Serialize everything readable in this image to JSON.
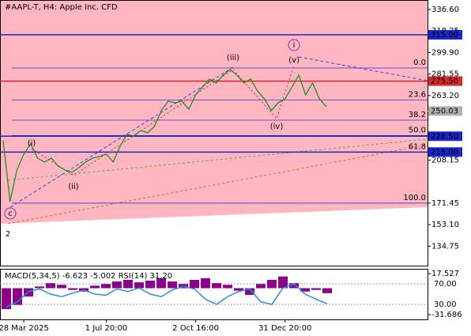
{
  "chart_data": [
    {
      "type": "line",
      "title": "#AAPL-T, H4:  Apple Inc. CFD",
      "categories": [
        null,
        null,
        null,
        "28 Mar 2025",
        null,
        null,
        null,
        null,
        null,
        null,
        null,
        null,
        null,
        null,
        null,
        "1 Jul 20:00",
        null,
        null,
        null,
        null,
        null,
        null,
        null,
        null,
        null,
        null,
        null,
        null,
        "2 Oct 16:00",
        null,
        null,
        null,
        null,
        null,
        null,
        null,
        null,
        null,
        null,
        null,
        null,
        "31 Dec 20:00",
        null,
        null,
        null,
        null,
        null,
        null
      ],
      "series": [
        {
          "color": "#1f8f1f",
          "values": [
            224.7,
            172.7,
            199.7,
            213.2,
            222.0,
            209.8,
            206.5,
            209.8,
            203.1,
            199.7,
            197.7,
            201.7,
            206.5,
            209.8,
            211.2,
            213.2,
            206.5,
            219.9,
            230.1,
            228.7,
            233.4,
            231.4,
            236.8,
            250.3,
            258.4,
            257.0,
            258.4,
            251.6,
            263.8,
            270.5,
            277.3,
            273.9,
            280.6,
            285.4,
            280.6,
            273.9,
            277.3,
            267.1,
            260.4,
            250.3,
            257.0,
            260.4,
            270.5,
            280.6,
            263.8,
            273.9,
            260.4,
            253.7
          ]
        }
      ],
      "ylim": [
        117.45,
        344.69
      ],
      "yticks": [
        {
          "value": 336.6,
          "label": "336.60"
        },
        {
          "value": 318.25,
          "label": "318.25"
        },
        {
          "value": 299.9,
          "label": "299.90"
        },
        {
          "value": 281.55,
          "label": "281.55"
        },
        {
          "value": 263.2,
          "label": "263.20"
        },
        {
          "value": 208.15,
          "label": "208.15"
        },
        {
          "value": 171.45,
          "label": "171.45"
        },
        {
          "value": 153.1,
          "label": "153.10"
        },
        {
          "value": 134.75,
          "label": "134.75"
        }
      ],
      "levels": [
        {
          "value": 315,
          "label": "315.00",
          "color": "#1a26c8"
        },
        {
          "value": 275.5,
          "label": "275.50",
          "color": "#d42a2a"
        },
        {
          "value": 228.5,
          "label": "228.50",
          "color": "#1a26c8"
        },
        {
          "value": 215,
          "label": "215.00",
          "color": "#1a26c8"
        },
        {
          "value": 250.03,
          "label": "250.03",
          "color": "#b0b0b0"
        }
      ],
      "fib_levels": [
        {
          "value": 286.7,
          "label": "0.0"
        },
        {
          "value": 259.5,
          "label": "23.6"
        },
        {
          "value": 242.2,
          "label": "38.2"
        },
        {
          "value": 229.1,
          "label": "50.0"
        },
        {
          "value": 214.8,
          "label": "61.8"
        },
        {
          "value": 171.45,
          "label": "100.0"
        }
      ],
      "annotations": [
        {
          "text": "(i)",
          "color": "#d42a2a"
        },
        {
          "text": "(ii)",
          "color": "#d42a2a"
        },
        {
          "text": "(iii)",
          "color": "#d42a2a"
        },
        {
          "text": "(iv)",
          "color": "#d42a2a"
        },
        {
          "text": "(v)",
          "color": "#d42a2a"
        },
        {
          "text": "i",
          "color": "#6a3fb0"
        },
        {
          "text": "c",
          "color": "#6a3fb0"
        },
        {
          "text": "2",
          "color": "#d42a2a"
        }
      ]
    },
    {
      "type": "indicator",
      "title": "MACD(5,34,5) -6.623 -5.002 RSI(14) 31.20",
      "series": [
        {
          "color": "#8b008b",
          "values": [
            -25,
            -20,
            -10,
            2,
            6,
            4,
            -2,
            -4,
            3,
            5,
            8,
            10,
            7,
            9,
            12,
            8,
            5,
            10,
            12,
            6,
            4,
            -3,
            -8,
            5,
            10,
            14,
            6,
            -4,
            -2,
            -6
          ]
        },
        {
          "color": "#2a8ee0",
          "axis": "y2",
          "values": [
            25,
            35,
            55,
            60,
            50,
            45,
            52,
            58,
            50,
            48,
            60,
            55,
            62,
            50,
            45,
            58,
            65,
            60,
            40,
            30,
            45,
            55,
            60,
            35,
            30,
            62,
            70,
            50,
            40,
            31.2
          ]
        }
      ],
      "ylim": [
        -31.686,
        17.527
      ],
      "yticks": [
        {
          "value": -31.686,
          "label": "-31.686"
        },
        {
          "value": 17.527,
          "label": "17.527"
        }
      ],
      "y2lim": [
        30,
        70
      ],
      "y2ticks": [
        {
          "value": 30,
          "label": "30.00"
        },
        {
          "value": 70,
          "label": "70.00"
        }
      ]
    }
  ]
}
